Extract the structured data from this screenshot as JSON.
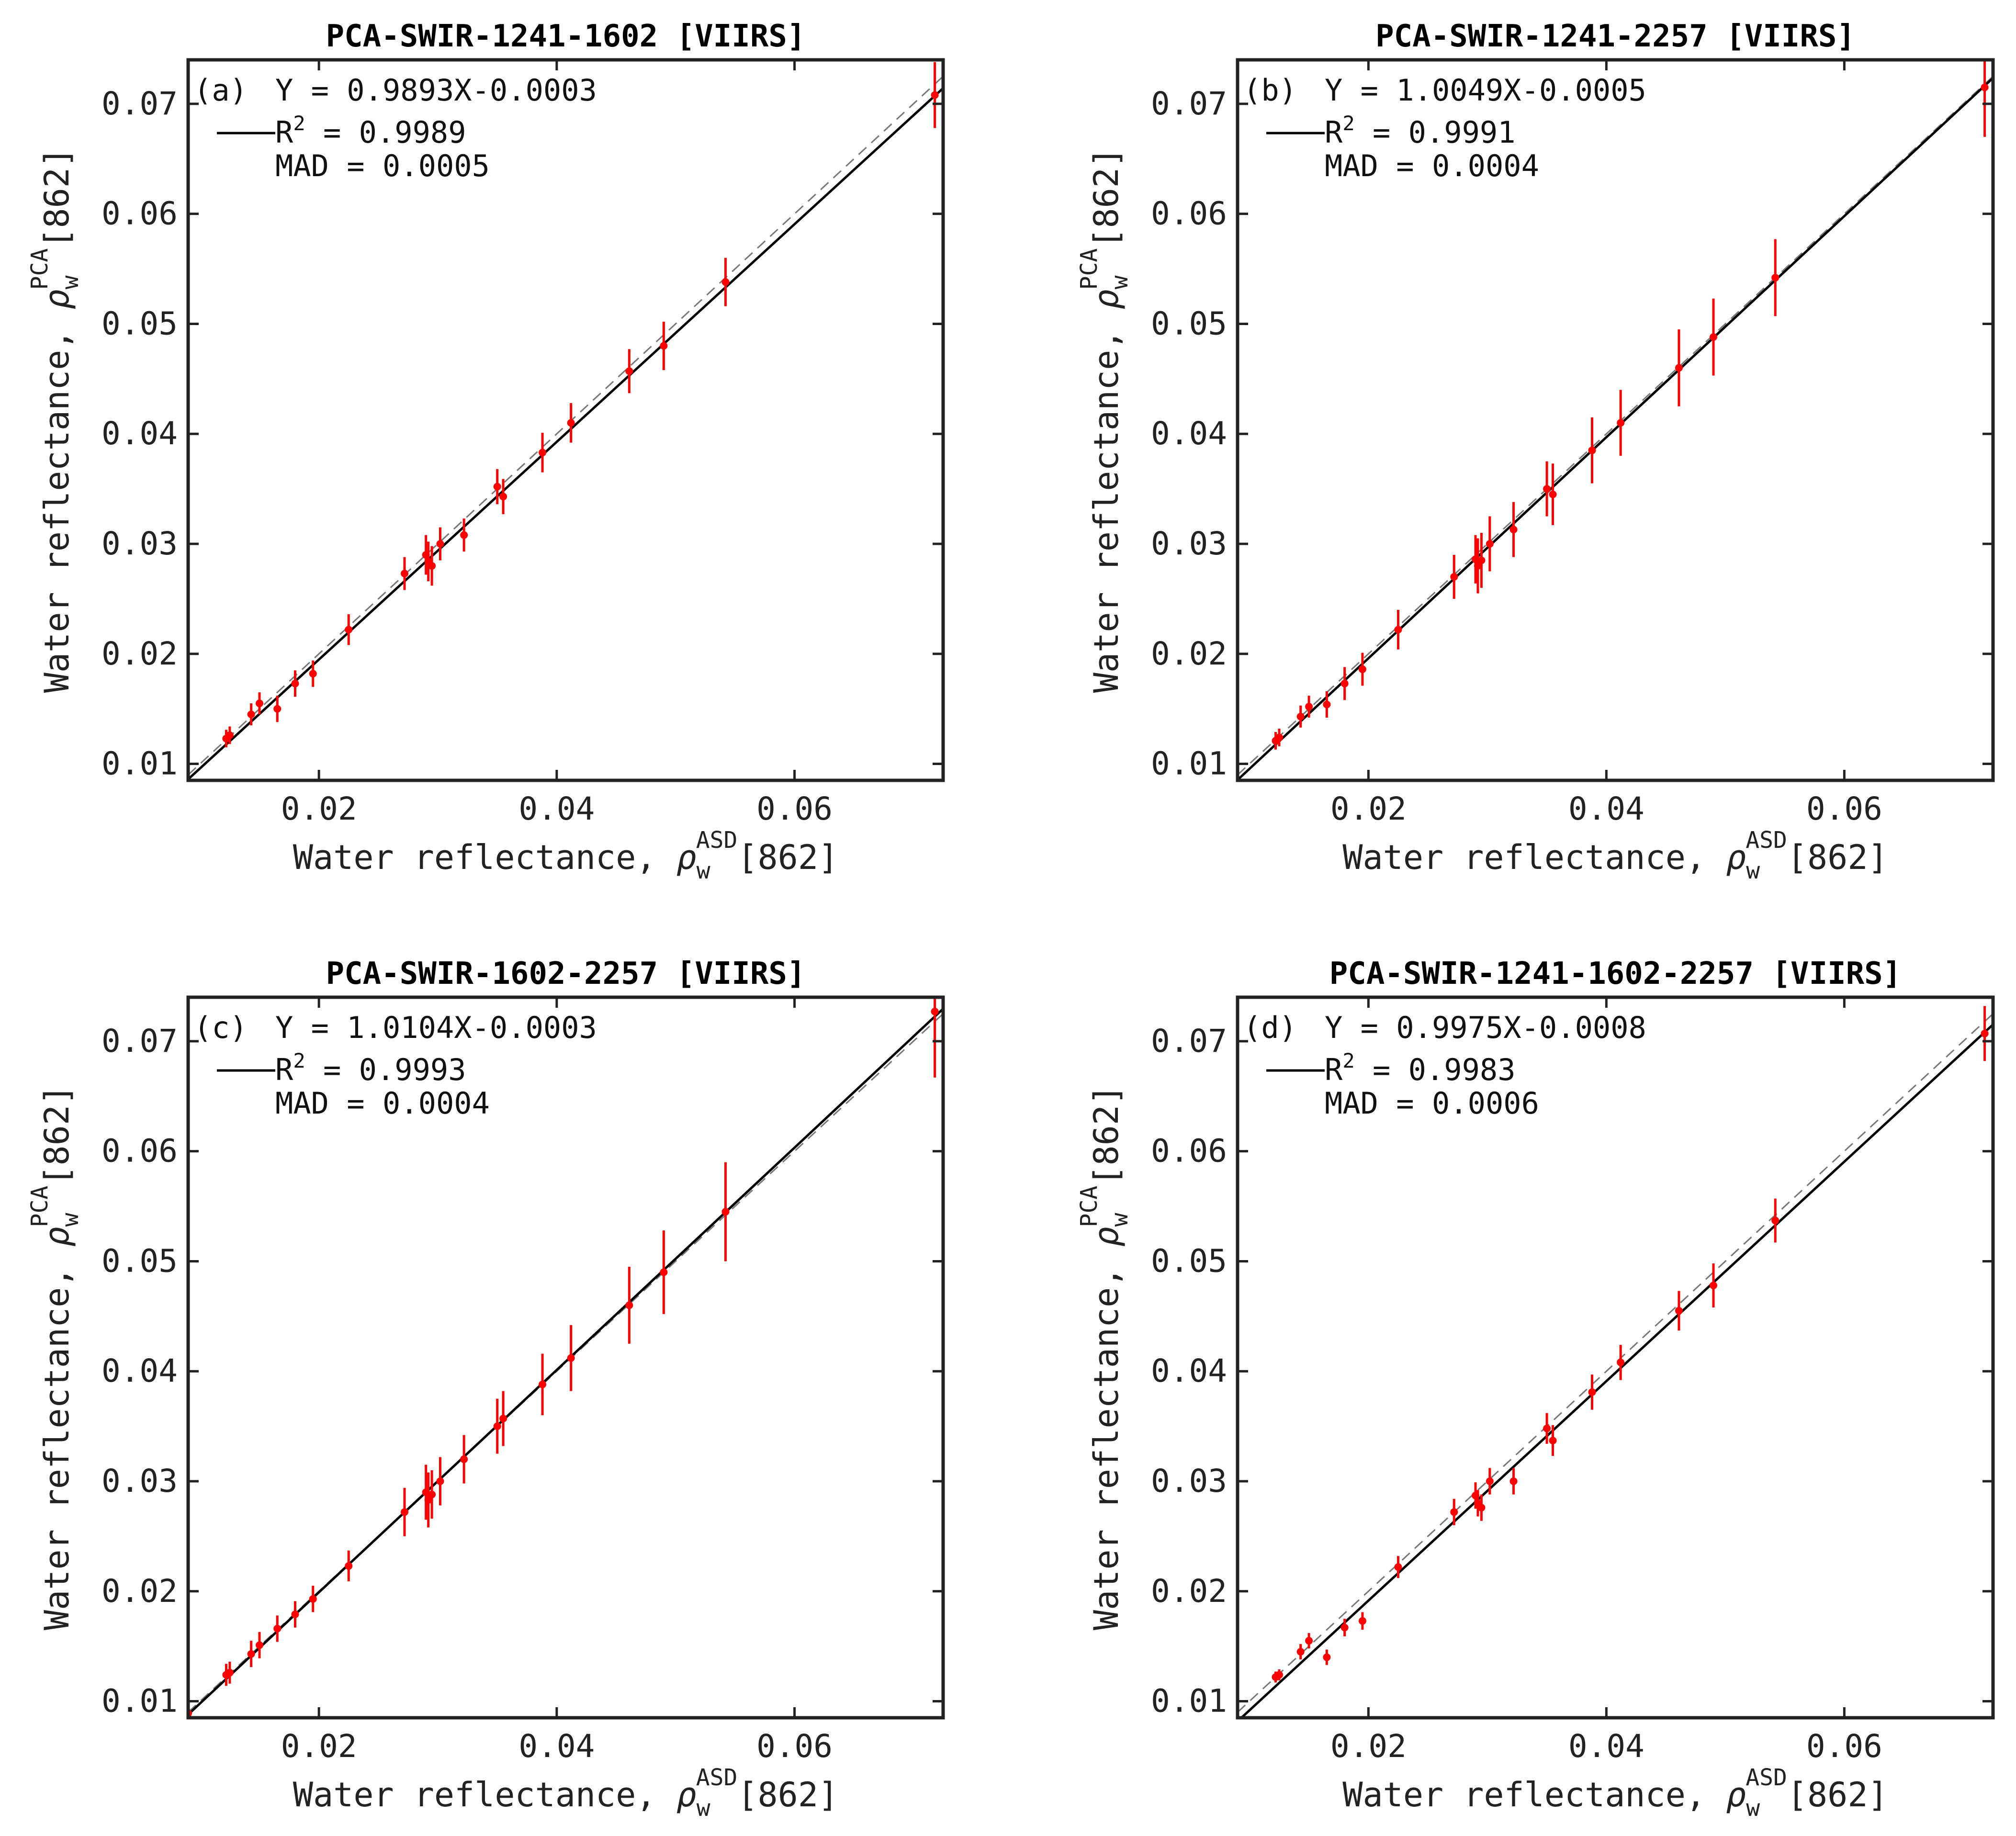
{
  "figure": {
    "colors": {
      "fit_line": "#000000",
      "one_to_one": "#777777",
      "points": "#ff0000",
      "axes": "#222222"
    },
    "x_axis_label": {
      "main": "Water reflectance, ",
      "symbol": "ρ",
      "sub": "w",
      "sup": "ASD",
      "band": "[862]"
    },
    "y_axis_label": {
      "main": "Water reflectance, ",
      "symbol": "ρ",
      "sub": "w",
      "sup": "PCA",
      "band": "[862]"
    },
    "x_ticks": [
      "0.02",
      "0.04",
      "0.06"
    ],
    "y_ticks": [
      "0.01",
      "0.02",
      "0.03",
      "0.04",
      "0.05",
      "0.06",
      "0.07"
    ]
  },
  "chart_data": [
    {
      "type": "scatter",
      "panel": "(a)",
      "title": "PCA-SWIR-1241-1602 [VIIRS]",
      "xlim": [
        0.009,
        0.0725
      ],
      "ylim": [
        0.0085,
        0.074
      ],
      "fit": {
        "slope": 0.9893,
        "intercept": -0.0003
      },
      "stats": {
        "equation": "Y = 0.9893X-0.0003",
        "r2_label": "R",
        "r2_value": " = 0.9989",
        "mad": "MAD = 0.0005"
      },
      "points": [
        [
          0.0122,
          0.0123,
          0.0008
        ],
        [
          0.0125,
          0.0126,
          0.0008
        ],
        [
          0.0143,
          0.0145,
          0.001
        ],
        [
          0.015,
          0.0155,
          0.001
        ],
        [
          0.0165,
          0.015,
          0.0012
        ],
        [
          0.018,
          0.0173,
          0.0012
        ],
        [
          0.0195,
          0.0182,
          0.0012
        ],
        [
          0.0225,
          0.0222,
          0.0014
        ],
        [
          0.0272,
          0.0273,
          0.0015
        ],
        [
          0.029,
          0.029,
          0.0018
        ],
        [
          0.0292,
          0.0284,
          0.0018
        ],
        [
          0.0295,
          0.028,
          0.0018
        ],
        [
          0.0302,
          0.03,
          0.0015
        ],
        [
          0.0322,
          0.0308,
          0.0015
        ],
        [
          0.035,
          0.0352,
          0.0016
        ],
        [
          0.0355,
          0.0343,
          0.0016
        ],
        [
          0.0388,
          0.0383,
          0.0018
        ],
        [
          0.0412,
          0.041,
          0.0018
        ],
        [
          0.0461,
          0.0457,
          0.002
        ],
        [
          0.049,
          0.048,
          0.0022
        ],
        [
          0.0542,
          0.0538,
          0.0022
        ],
        [
          0.0718,
          0.0708,
          0.003
        ]
      ]
    },
    {
      "type": "scatter",
      "panel": "(b)",
      "title": "PCA-SWIR-1241-2257 [VIIRS]",
      "xlim": [
        0.009,
        0.0725
      ],
      "ylim": [
        0.0085,
        0.074
      ],
      "fit": {
        "slope": 1.0049,
        "intercept": -0.0005
      },
      "stats": {
        "equation": "Y = 1.0049X-0.0005",
        "r2_label": "R",
        "r2_value": " = 0.9991",
        "mad": "MAD = 0.0004"
      },
      "points": [
        [
          0.0122,
          0.0121,
          0.0008
        ],
        [
          0.0125,
          0.0124,
          0.0008
        ],
        [
          0.0143,
          0.0143,
          0.001
        ],
        [
          0.015,
          0.0152,
          0.001
        ],
        [
          0.0165,
          0.0154,
          0.0012
        ],
        [
          0.018,
          0.0173,
          0.0015
        ],
        [
          0.0195,
          0.0186,
          0.0015
        ],
        [
          0.0225,
          0.0222,
          0.0018
        ],
        [
          0.0272,
          0.027,
          0.002
        ],
        [
          0.029,
          0.0286,
          0.0022
        ],
        [
          0.0292,
          0.028,
          0.0025
        ],
        [
          0.0295,
          0.0285,
          0.0025
        ],
        [
          0.0302,
          0.03,
          0.0025
        ],
        [
          0.0322,
          0.0313,
          0.0025
        ],
        [
          0.035,
          0.035,
          0.0025
        ],
        [
          0.0355,
          0.0345,
          0.0028
        ],
        [
          0.0388,
          0.0385,
          0.003
        ],
        [
          0.0412,
          0.041,
          0.003
        ],
        [
          0.0461,
          0.046,
          0.0035
        ],
        [
          0.049,
          0.0488,
          0.0035
        ],
        [
          0.0542,
          0.0542,
          0.0035
        ],
        [
          0.0718,
          0.0715,
          0.0045
        ]
      ]
    },
    {
      "type": "scatter",
      "panel": "(c)",
      "title": "PCA-SWIR-1602-2257 [VIIRS]",
      "xlim": [
        0.009,
        0.0725
      ],
      "ylim": [
        0.0085,
        0.074
      ],
      "fit": {
        "slope": 1.0104,
        "intercept": -0.0003
      },
      "stats": {
        "equation": "Y = 1.0104X-0.0003",
        "r2_label": "R",
        "r2_value": " = 0.9993",
        "mad": "MAD = 0.0004"
      },
      "points": [
        [
          0.009,
          0.0089,
          0.0006
        ],
        [
          0.0122,
          0.0124,
          0.001
        ],
        [
          0.0125,
          0.0126,
          0.001
        ],
        [
          0.0143,
          0.0143,
          0.0012
        ],
        [
          0.015,
          0.0151,
          0.0012
        ],
        [
          0.0165,
          0.0166,
          0.0012
        ],
        [
          0.018,
          0.0179,
          0.0012
        ],
        [
          0.0195,
          0.0193,
          0.0012
        ],
        [
          0.0225,
          0.0223,
          0.0014
        ],
        [
          0.0272,
          0.0272,
          0.0022
        ],
        [
          0.029,
          0.029,
          0.0025
        ],
        [
          0.0292,
          0.0283,
          0.0025
        ],
        [
          0.0295,
          0.0288,
          0.0022
        ],
        [
          0.0302,
          0.03,
          0.0022
        ],
        [
          0.0322,
          0.032,
          0.0022
        ],
        [
          0.035,
          0.035,
          0.0025
        ],
        [
          0.0355,
          0.0357,
          0.0025
        ],
        [
          0.0388,
          0.0388,
          0.0028
        ],
        [
          0.0412,
          0.0412,
          0.003
        ],
        [
          0.0461,
          0.046,
          0.0035
        ],
        [
          0.049,
          0.049,
          0.0038
        ],
        [
          0.0542,
          0.0545,
          0.0045
        ],
        [
          0.0718,
          0.0727,
          0.006
        ]
      ]
    },
    {
      "type": "scatter",
      "panel": "(d)",
      "title": "PCA-SWIR-1241-1602-2257 [VIIRS]",
      "xlim": [
        0.009,
        0.0725
      ],
      "ylim": [
        0.0085,
        0.074
      ],
      "fit": {
        "slope": 0.9975,
        "intercept": -0.0008
      },
      "stats": {
        "equation": "Y = 0.9975X-0.0008",
        "r2_label": "R",
        "r2_value": " = 0.9983",
        "mad": "MAD = 0.0006"
      },
      "points": [
        [
          0.0122,
          0.0122,
          0.0005
        ],
        [
          0.0125,
          0.0124,
          0.0005
        ],
        [
          0.0143,
          0.0145,
          0.0007
        ],
        [
          0.015,
          0.0155,
          0.0007
        ],
        [
          0.0165,
          0.014,
          0.0007
        ],
        [
          0.018,
          0.0167,
          0.0008
        ],
        [
          0.0195,
          0.0173,
          0.0008
        ],
        [
          0.0225,
          0.0222,
          0.001
        ],
        [
          0.0272,
          0.0272,
          0.0012
        ],
        [
          0.029,
          0.0287,
          0.0012
        ],
        [
          0.0292,
          0.028,
          0.0012
        ],
        [
          0.0295,
          0.0276,
          0.0012
        ],
        [
          0.0302,
          0.03,
          0.0012
        ],
        [
          0.0322,
          0.03,
          0.0012
        ],
        [
          0.035,
          0.0348,
          0.0014
        ],
        [
          0.0355,
          0.0337,
          0.0014
        ],
        [
          0.0388,
          0.0381,
          0.0016
        ],
        [
          0.0412,
          0.0408,
          0.0016
        ],
        [
          0.0461,
          0.0455,
          0.0018
        ],
        [
          0.049,
          0.0478,
          0.002
        ],
        [
          0.0542,
          0.0537,
          0.002
        ],
        [
          0.0718,
          0.0707,
          0.0025
        ]
      ]
    }
  ]
}
